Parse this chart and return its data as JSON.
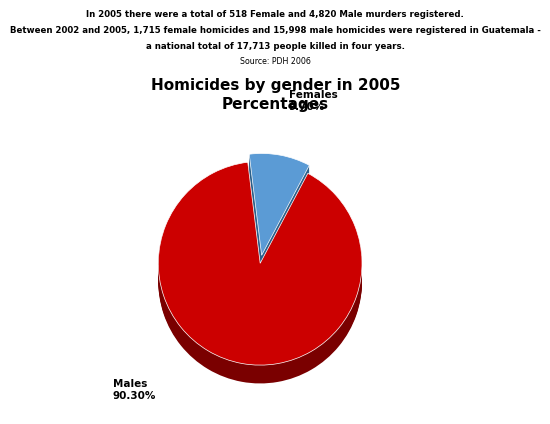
{
  "title_line1": "Homicides by gender in 2005",
  "title_line2": "Percentages",
  "header_line1": "In 2005 there were a total of 518 Female and 4,820 Male murders registered.",
  "header_line2": "Between 2002 and 2005, 1,715 female homicides and 15,998 male homicides were registered in Guatemala -",
  "header_line3": "a national total of 17,713 people killed in four years.",
  "header_line4": "Source: PDH 2006",
  "labels": [
    "Females",
    "Males"
  ],
  "values": [
    9.7,
    90.3
  ],
  "colors": [
    "#5b9bd5",
    "#cc0000"
  ],
  "dark_colors": [
    "#2a5f8a",
    "#7a0000"
  ],
  "explode": [
    0.08,
    0.0
  ],
  "background_color": "#ffffff",
  "title_fontsize": 11,
  "header_fontsize": 6.2,
  "label_fontsize": 7.5,
  "startangle": 97,
  "depth": 0.18,
  "n_layers": 15
}
